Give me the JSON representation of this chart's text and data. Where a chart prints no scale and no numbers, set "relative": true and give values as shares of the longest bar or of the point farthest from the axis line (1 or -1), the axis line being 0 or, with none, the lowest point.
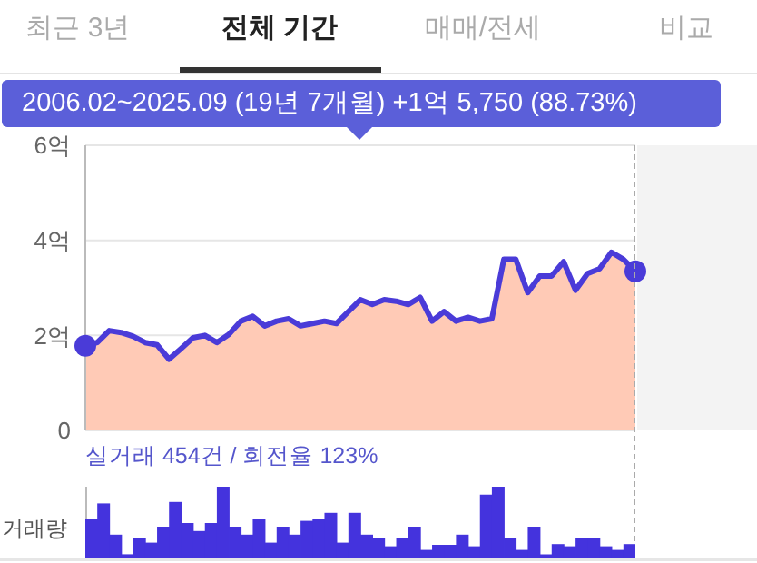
{
  "chart_data": [
    {
      "type": "area",
      "annotations": [
        "최근 3년",
        "전체 기간",
        "매매/전세",
        "비교",
        "2006.02~2025.09 (19년 7개월)  +1억 5,750 (88.73%)"
      ],
      "categories": [
        null,
        null,
        null,
        null,
        null,
        null,
        null,
        null,
        null,
        null,
        null,
        null,
        null,
        null,
        null,
        null,
        null,
        null,
        null,
        null,
        null,
        null,
        null,
        null,
        null,
        null,
        null,
        null,
        null,
        null,
        null,
        null,
        null,
        null,
        null,
        null,
        null,
        null,
        null,
        null,
        null,
        null,
        null,
        null,
        null,
        null,
        null
      ],
      "ylim": [
        0,
        6
      ],
      "yticks": [
        {
          "value": 0,
          "label": "0"
        },
        {
          "value": 2,
          "label": "2억"
        },
        {
          "value": 4,
          "label": "4억"
        },
        {
          "value": 6,
          "label": "6억"
        }
      ],
      "grid": "y",
      "tick_labels": "y",
      "series": [
        {
          "type": "area",
          "color": "#ffcab6",
          "values": [
            1.78,
            1.85,
            2.1,
            2.06,
            1.98,
            1.85,
            1.8,
            1.5,
            1.72,
            1.95,
            2.0,
            1.85,
            2.02,
            2.3,
            2.4,
            2.2,
            2.3,
            2.35,
            2.2,
            2.25,
            2.3,
            2.25,
            2.5,
            2.75,
            2.65,
            2.75,
            2.72,
            2.65,
            2.8,
            2.3,
            2.5,
            2.3,
            2.38,
            2.3,
            2.35,
            3.6,
            3.6,
            2.9,
            3.25,
            3.25,
            3.55,
            2.95,
            3.3,
            3.4,
            3.75,
            3.6,
            3.35
          ]
        },
        {
          "type": "line",
          "color": "#4a3bd8",
          "values": [
            1.78,
            1.85,
            2.1,
            2.06,
            1.98,
            1.85,
            1.8,
            1.5,
            1.72,
            1.95,
            2.0,
            1.85,
            2.02,
            2.3,
            2.4,
            2.2,
            2.3,
            2.35,
            2.2,
            2.25,
            2.3,
            2.25,
            2.5,
            2.75,
            2.65,
            2.75,
            2.72,
            2.65,
            2.8,
            2.3,
            2.5,
            2.3,
            2.38,
            2.3,
            2.35,
            3.6,
            3.6,
            2.9,
            3.25,
            3.25,
            3.55,
            2.95,
            3.3,
            3.4,
            3.75,
            3.6,
            3.35
          ]
        }
      ]
    },
    {
      "type": "bar",
      "relative": true,
      "ylabel": "거래량",
      "tick_labels": false,
      "color": "#4433dd",
      "annotations": [
        "실거래 454건 / 회전율 123%"
      ],
      "categories": [
        null,
        null,
        null,
        null,
        null,
        null,
        null,
        null,
        null,
        null,
        null,
        null,
        null,
        null,
        null,
        null,
        null,
        null,
        null,
        null,
        null,
        null,
        null,
        null,
        null,
        null,
        null,
        null,
        null,
        null,
        null,
        null,
        null,
        null,
        null,
        null,
        null,
        null,
        null,
        null,
        null,
        null,
        null,
        null,
        null,
        null
      ],
      "values": [
        0.55,
        0.77,
        0.34,
        0.07,
        0.29,
        0.23,
        0.45,
        0.79,
        0.5,
        0.39,
        0.5,
        1,
        0.45,
        0.34,
        0.55,
        0.23,
        0.45,
        0.34,
        0.53,
        0.55,
        0.64,
        0.23,
        0.64,
        0.34,
        0.29,
        0.18,
        0.29,
        0.45,
        0.13,
        0.2,
        0.2,
        0.34,
        0.18,
        0.89,
        1,
        0.29,
        0.13,
        0.45,
        0.07,
        0.21,
        0.18,
        0.29,
        0.29,
        0.18,
        0.13,
        0.21
      ]
    }
  ]
}
